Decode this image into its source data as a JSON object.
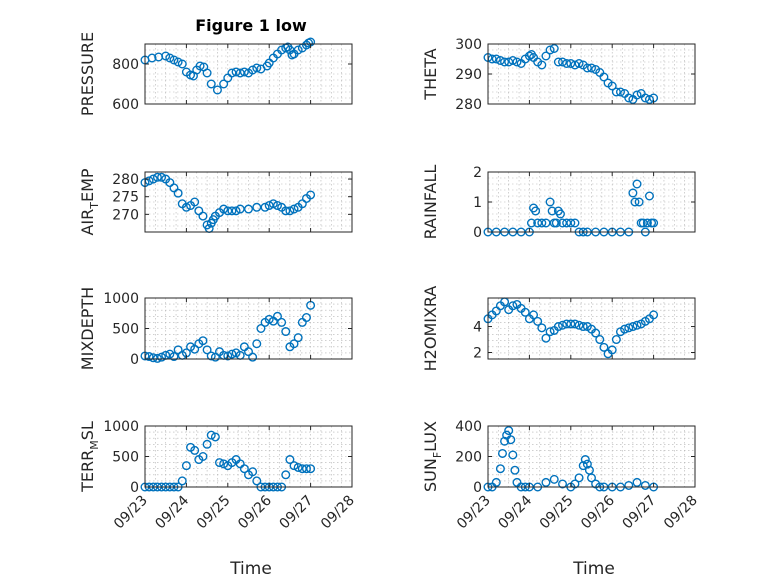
{
  "figure_title": "Figure 1 low",
  "colors": {
    "marker": "#0072BD",
    "axis": "#262626",
    "grid": "#b3b3b3"
  },
  "chart_data": [
    {
      "type": "scatter",
      "id": "pressure",
      "title": "Figure 1 low",
      "ylabel": "PRESSURE",
      "ylabel_sub": "",
      "ylabel_after": "",
      "ylim": [
        600,
        900
      ],
      "yticks": [
        600,
        800
      ],
      "ytick_labels": [
        "600",
        "800"
      ],
      "xlim": [
        0,
        5
      ],
      "grid": true,
      "show_xticklabels": false,
      "x": [
        0,
        0.17,
        0.33,
        0.5,
        0.6,
        0.7,
        0.8,
        0.9,
        1.0,
        1.1,
        1.17,
        1.25,
        1.33,
        1.42,
        1.5,
        1.6,
        1.75,
        1.9,
        2.0,
        2.1,
        2.2,
        2.3,
        2.4,
        2.5,
        2.6,
        2.7,
        2.8,
        2.95,
        3.0,
        3.1,
        3.2,
        3.3,
        3.4,
        3.45,
        3.5,
        3.55,
        3.6,
        3.7,
        3.8,
        3.9,
        3.95,
        4.0
      ],
      "y": [
        820,
        830,
        835,
        840,
        830,
        820,
        810,
        800,
        760,
        745,
        740,
        770,
        790,
        785,
        755,
        700,
        670,
        700,
        730,
        755,
        760,
        755,
        760,
        755,
        770,
        780,
        775,
        790,
        805,
        830,
        850,
        870,
        880,
        885,
        870,
        845,
        850,
        870,
        880,
        895,
        905,
        910
      ]
    },
    {
      "type": "scatter",
      "id": "theta",
      "title": "",
      "ylabel": "THETA",
      "ylabel_sub": "",
      "ylabel_after": "",
      "ylim": [
        280,
        300
      ],
      "yticks": [
        280,
        290,
        300
      ],
      "ytick_labels": [
        "280",
        "290",
        "300"
      ],
      "xlim": [
        0,
        5
      ],
      "grid": true,
      "show_xticklabels": false,
      "x": [
        0,
        0.1,
        0.2,
        0.3,
        0.4,
        0.5,
        0.6,
        0.7,
        0.8,
        0.9,
        1.0,
        1.05,
        1.1,
        1.2,
        1.3,
        1.4,
        1.5,
        1.6,
        1.7,
        1.8,
        1.9,
        2.0,
        2.1,
        2.2,
        2.3,
        2.4,
        2.5,
        2.6,
        2.7,
        2.8,
        2.9,
        3.0,
        3.1,
        3.2,
        3.3,
        3.4,
        3.5,
        3.6,
        3.7,
        3.8,
        3.9,
        4.0
      ],
      "y": [
        295.5,
        295,
        295,
        294.5,
        294,
        294,
        294.5,
        294,
        293.5,
        295,
        296,
        296.5,
        295.5,
        294,
        293,
        296,
        298,
        298.5,
        294,
        294,
        293.5,
        293.5,
        293,
        293.5,
        293,
        292,
        292,
        291.5,
        290.5,
        289,
        287,
        286,
        284,
        284,
        283.5,
        282,
        281.5,
        283,
        283.5,
        282,
        281.5,
        282
      ]
    },
    {
      "type": "scatter",
      "id": "air_temp",
      "title": "",
      "ylabel": "AIR",
      "ylabel_sub": "T",
      "ylabel_after": "EMP",
      "ylim": [
        265,
        282
      ],
      "yticks": [
        270,
        275,
        280
      ],
      "ytick_labels": [
        "270",
        "275",
        "280"
      ],
      "xlim": [
        0,
        5
      ],
      "grid": true,
      "show_xticklabels": false,
      "x": [
        0,
        0.1,
        0.2,
        0.3,
        0.4,
        0.5,
        0.6,
        0.7,
        0.8,
        0.9,
        1.0,
        1.1,
        1.2,
        1.3,
        1.4,
        1.5,
        1.55,
        1.6,
        1.65,
        1.7,
        1.8,
        1.9,
        2.0,
        2.1,
        2.2,
        2.3,
        2.5,
        2.7,
        2.9,
        3.0,
        3.1,
        3.2,
        3.3,
        3.4,
        3.5,
        3.6,
        3.7,
        3.8,
        3.9,
        4.0
      ],
      "y": [
        279,
        279.5,
        280,
        280.5,
        280.5,
        280,
        279,
        277.5,
        276,
        273,
        272,
        272.5,
        273.5,
        271,
        269.5,
        267,
        266,
        267.5,
        268.5,
        269.5,
        270.5,
        271.5,
        271,
        271,
        271,
        271.5,
        271.5,
        272,
        272,
        272.5,
        273,
        272.5,
        272,
        271,
        271,
        271.5,
        272,
        273,
        274.5,
        275.5
      ]
    },
    {
      "type": "scatter",
      "id": "rainfall",
      "title": "",
      "ylabel": "RAINFALL",
      "ylabel_sub": "",
      "ylabel_after": "",
      "ylim": [
        0,
        2
      ],
      "yticks": [
        0,
        1,
        2
      ],
      "ytick_labels": [
        "0",
        "1",
        "2"
      ],
      "xlim": [
        0,
        5
      ],
      "grid": true,
      "show_xticklabels": false,
      "x": [
        0,
        0.2,
        0.4,
        0.6,
        0.8,
        1.0,
        1.05,
        1.1,
        1.15,
        1.2,
        1.3,
        1.4,
        1.5,
        1.55,
        1.6,
        1.65,
        1.7,
        1.75,
        1.8,
        1.9,
        2.0,
        2.1,
        2.2,
        2.3,
        2.4,
        2.6,
        2.8,
        3.0,
        3.2,
        3.4,
        3.5,
        3.55,
        3.6,
        3.65,
        3.7,
        3.75,
        3.8,
        3.85,
        3.9,
        3.95,
        4.0
      ],
      "y": [
        0,
        0,
        0,
        0,
        0,
        0,
        0.3,
        0.8,
        0.7,
        0.3,
        0.3,
        0.3,
        1.0,
        0.7,
        0.3,
        0.3,
        0.7,
        0.6,
        0.3,
        0.3,
        0.3,
        0.3,
        0,
        0,
        0,
        0,
        0,
        0,
        0,
        0,
        1.3,
        1.0,
        1.6,
        1.0,
        0.3,
        0.3,
        0,
        0.3,
        1.2,
        0.3,
        0.3
      ]
    },
    {
      "type": "scatter",
      "id": "mixdepth",
      "title": "",
      "ylabel": "MIXDEPTH",
      "ylabel_sub": "",
      "ylabel_after": "",
      "ylim": [
        0,
        1000
      ],
      "yticks": [
        0,
        500,
        1000
      ],
      "ytick_labels": [
        "0",
        "500",
        "1000"
      ],
      "xlim": [
        0,
        5
      ],
      "grid": true,
      "show_xticklabels": false,
      "x": [
        0,
        0.1,
        0.2,
        0.3,
        0.4,
        0.5,
        0.6,
        0.7,
        0.8,
        0.9,
        1.0,
        1.1,
        1.2,
        1.3,
        1.4,
        1.5,
        1.6,
        1.7,
        1.8,
        1.9,
        2.0,
        2.1,
        2.2,
        2.3,
        2.4,
        2.5,
        2.6,
        2.7,
        2.8,
        2.9,
        3.0,
        3.1,
        3.2,
        3.3,
        3.4,
        3.5,
        3.6,
        3.7,
        3.8,
        3.9,
        4.0
      ],
      "y": [
        50,
        40,
        20,
        10,
        30,
        60,
        80,
        40,
        150,
        60,
        100,
        200,
        160,
        250,
        300,
        150,
        50,
        30,
        120,
        60,
        50,
        80,
        100,
        60,
        200,
        120,
        30,
        250,
        500,
        600,
        650,
        620,
        700,
        600,
        450,
        200,
        250,
        350,
        600,
        680,
        880
      ]
    },
    {
      "type": "scatter",
      "id": "h2omixra",
      "title": "",
      "ylabel": "H2OMIXRA",
      "ylabel_sub": "",
      "ylabel_after": "",
      "ylim": [
        1.5,
        6.2
      ],
      "yticks": [
        2,
        4
      ],
      "ytick_labels": [
        "2",
        "4"
      ],
      "xlim": [
        0,
        5
      ],
      "grid": true,
      "show_xticklabels": false,
      "x": [
        0,
        0.1,
        0.2,
        0.3,
        0.4,
        0.5,
        0.6,
        0.7,
        0.8,
        0.9,
        1.0,
        1.1,
        1.2,
        1.3,
        1.4,
        1.5,
        1.6,
        1.7,
        1.8,
        1.9,
        2.0,
        2.1,
        2.2,
        2.3,
        2.4,
        2.5,
        2.6,
        2.7,
        2.8,
        2.9,
        3.0,
        3.1,
        3.2,
        3.3,
        3.4,
        3.5,
        3.6,
        3.7,
        3.8,
        3.9,
        4.0
      ],
      "y": [
        4.6,
        4.9,
        5.2,
        5.6,
        5.9,
        5.3,
        5.6,
        5.7,
        5.4,
        5.1,
        4.6,
        4.9,
        4.4,
        3.9,
        3.1,
        3.6,
        3.7,
        4.0,
        4.1,
        4.2,
        4.2,
        4.2,
        4.1,
        4.0,
        4.0,
        3.8,
        3.5,
        3.0,
        2.4,
        1.9,
        2.2,
        3.0,
        3.6,
        3.8,
        3.9,
        4.0,
        4.1,
        4.2,
        4.4,
        4.6,
        4.9
      ]
    },
    {
      "type": "scatter",
      "id": "terr_msl",
      "title": "",
      "ylabel": "TERR",
      "ylabel_sub": "M",
      "ylabel_after": "SL",
      "ylim": [
        0,
        1000
      ],
      "yticks": [
        0,
        500,
        1000
      ],
      "ytick_labels": [
        "0",
        "500",
        "1000"
      ],
      "xlim": [
        0,
        5
      ],
      "grid": true,
      "show_xticklabels": true,
      "x": [
        0,
        0.1,
        0.2,
        0.3,
        0.4,
        0.5,
        0.6,
        0.7,
        0.8,
        0.9,
        1.0,
        1.1,
        1.2,
        1.3,
        1.4,
        1.5,
        1.6,
        1.7,
        1.8,
        1.9,
        2.0,
        2.1,
        2.2,
        2.3,
        2.4,
        2.5,
        2.6,
        2.7,
        2.8,
        2.9,
        3.0,
        3.1,
        3.2,
        3.3,
        3.4,
        3.5,
        3.6,
        3.7,
        3.8,
        3.9,
        4.0
      ],
      "y": [
        0,
        0,
        0,
        0,
        0,
        0,
        0,
        0,
        0,
        100,
        350,
        650,
        600,
        450,
        500,
        700,
        850,
        820,
        400,
        380,
        350,
        400,
        450,
        380,
        300,
        200,
        250,
        100,
        0,
        0,
        0,
        0,
        0,
        0,
        200,
        450,
        350,
        320,
        300,
        300,
        300
      ]
    },
    {
      "type": "scatter",
      "id": "sun_flux",
      "title": "",
      "ylabel": "SUN",
      "ylabel_sub": "F",
      "ylabel_after": "LUX",
      "ylim": [
        0,
        400
      ],
      "yticks": [
        0,
        200,
        400
      ],
      "ytick_labels": [
        "0",
        "200",
        "400"
      ],
      "xlim": [
        0,
        5
      ],
      "grid": true,
      "show_xticklabels": true,
      "x": [
        0,
        0.1,
        0.2,
        0.3,
        0.35,
        0.4,
        0.45,
        0.5,
        0.55,
        0.6,
        0.65,
        0.7,
        0.8,
        0.9,
        1.0,
        1.2,
        1.4,
        1.6,
        1.8,
        2.0,
        2.1,
        2.2,
        2.3,
        2.35,
        2.4,
        2.45,
        2.5,
        2.6,
        2.7,
        2.8,
        3.0,
        3.2,
        3.4,
        3.6,
        3.8,
        4.0
      ],
      "y": [
        0,
        0,
        30,
        120,
        220,
        300,
        340,
        370,
        310,
        210,
        110,
        30,
        0,
        0,
        0,
        0,
        30,
        50,
        20,
        0,
        20,
        60,
        140,
        180,
        150,
        110,
        60,
        20,
        0,
        0,
        0,
        0,
        10,
        30,
        10,
        0
      ]
    }
  ],
  "xtick_labels": [
    "09/23",
    "09/24",
    "09/25",
    "09/26",
    "09/27",
    "09/28"
  ],
  "xlabel": "Time"
}
